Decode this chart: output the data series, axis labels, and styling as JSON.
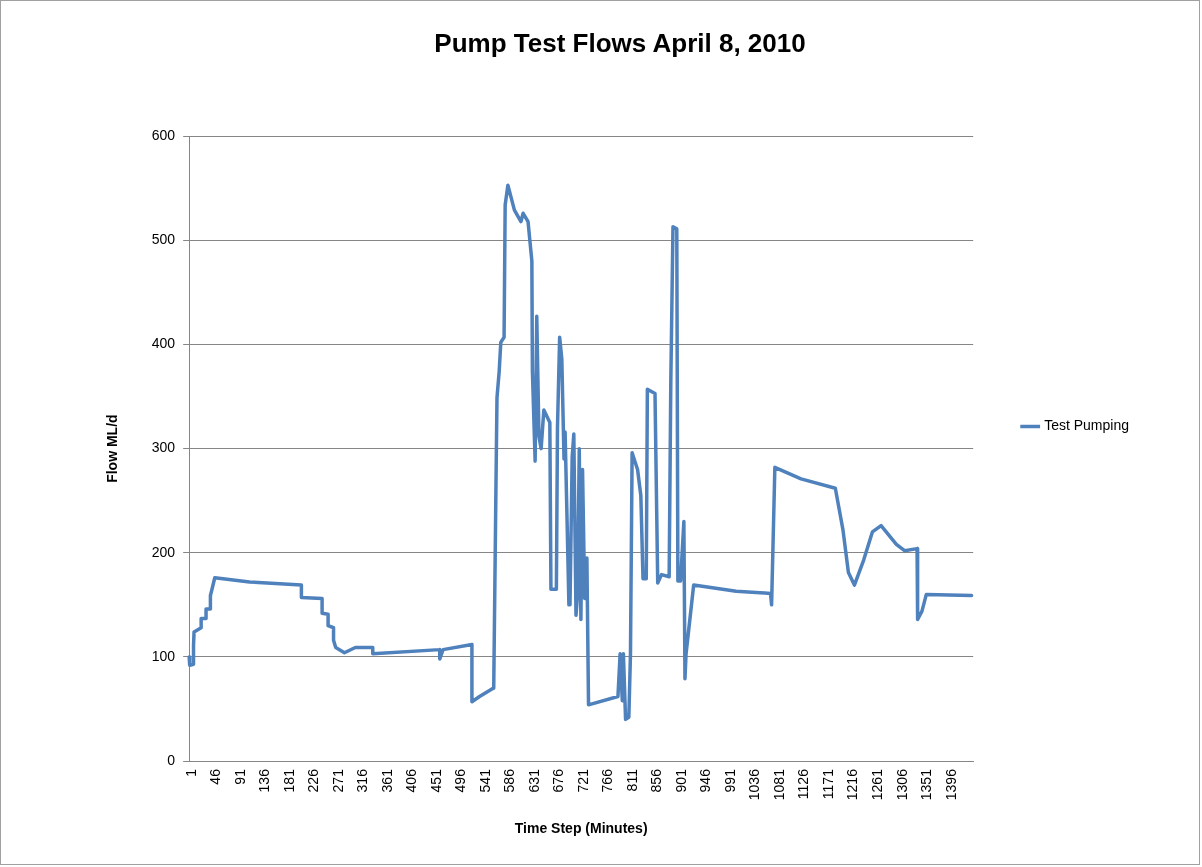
{
  "chart_data": {
    "type": "line",
    "title": "Pump Test Flows April 8, 2010",
    "xlabel": "Time Step (Minutes)",
    "ylabel": "Flow ML/d",
    "xlim": [
      1,
      1440
    ],
    "xticks": [
      1,
      46,
      91,
      136,
      181,
      226,
      271,
      316,
      361,
      406,
      451,
      496,
      541,
      586,
      631,
      676,
      721,
      766,
      811,
      856,
      901,
      946,
      991,
      1036,
      1081,
      1126,
      1171,
      1216,
      1261,
      1306,
      1351,
      1396
    ],
    "ylim": [
      0,
      600
    ],
    "yticks": [
      0,
      100,
      200,
      300,
      400,
      500,
      600
    ],
    "grid": "y",
    "legend": "right",
    "marker": "none",
    "line_style": "solid",
    "series": [
      {
        "name": "Test Pumping",
        "color": "#4f81bd",
        "x": [
          1,
          2,
          9,
          9,
          10,
          23,
          23,
          32,
          32,
          40,
          40,
          42,
          48,
          112,
          207,
          207,
          245,
          245,
          256,
          256,
          266,
          266,
          270,
          286,
          306,
          338,
          338,
          461,
          461,
          467,
          520,
          520,
          534,
          556,
          560,
          564,
          566,
          570,
          573,
          579,
          581,
          586,
          598,
          610,
          614,
          623,
          630,
          631,
          636,
          639,
          643,
          647,
          652,
          663,
          665,
          675,
          677,
          681,
          685,
          689,
          691,
          695,
          698,
          700,
          704,
          707,
          711,
          714,
          717,
          720,
          723,
          727,
          731,
          734,
          788,
          792,
          796,
          798,
          802,
          808,
          811,
          814,
          824,
          830,
          834,
          840,
          842,
          856,
          861,
          868,
          882,
          885,
          889,
          896,
          898,
          903,
          909,
          911,
          913,
          927,
          1005,
          1068,
          1070,
          1076,
          1124,
          1187,
          1201,
          1211,
          1222,
          1239,
          1255,
          1271,
          1299,
          1314,
          1337,
          1338,
          1346,
          1354,
          1437
        ],
        "values": [
          100,
          92,
          93,
          111,
          124,
          128,
          137,
          137,
          146,
          146,
          159,
          163,
          176,
          172,
          169,
          157,
          156,
          142,
          141,
          130,
          128,
          116,
          109,
          104,
          109,
          109,
          103,
          107,
          98,
          107,
          112,
          57,
          62,
          69,
          70,
          259,
          349,
          374,
          402,
          407,
          534,
          553,
          529,
          518,
          526,
          518,
          480,
          374,
          288,
          427,
          312,
          300,
          337,
          325,
          165,
          165,
          320,
          407,
          386,
          290,
          316,
          222,
          150,
          150,
          292,
          314,
          140,
          161,
          300,
          136,
          280,
          156,
          195,
          54,
          62,
          103,
          58,
          103,
          40,
          42,
          103,
          296,
          280,
          255,
          175,
          175,
          357,
          353,
          171,
          179,
          177,
          363,
          513,
          511,
          173,
          173,
          230,
          79,
          103,
          169,
          163,
          161,
          150,
          282,
          271,
          262,
          222,
          181,
          169,
          193,
          220,
          226,
          208,
          202,
          204,
          136,
          144,
          160,
          159
        ]
      }
    ]
  }
}
